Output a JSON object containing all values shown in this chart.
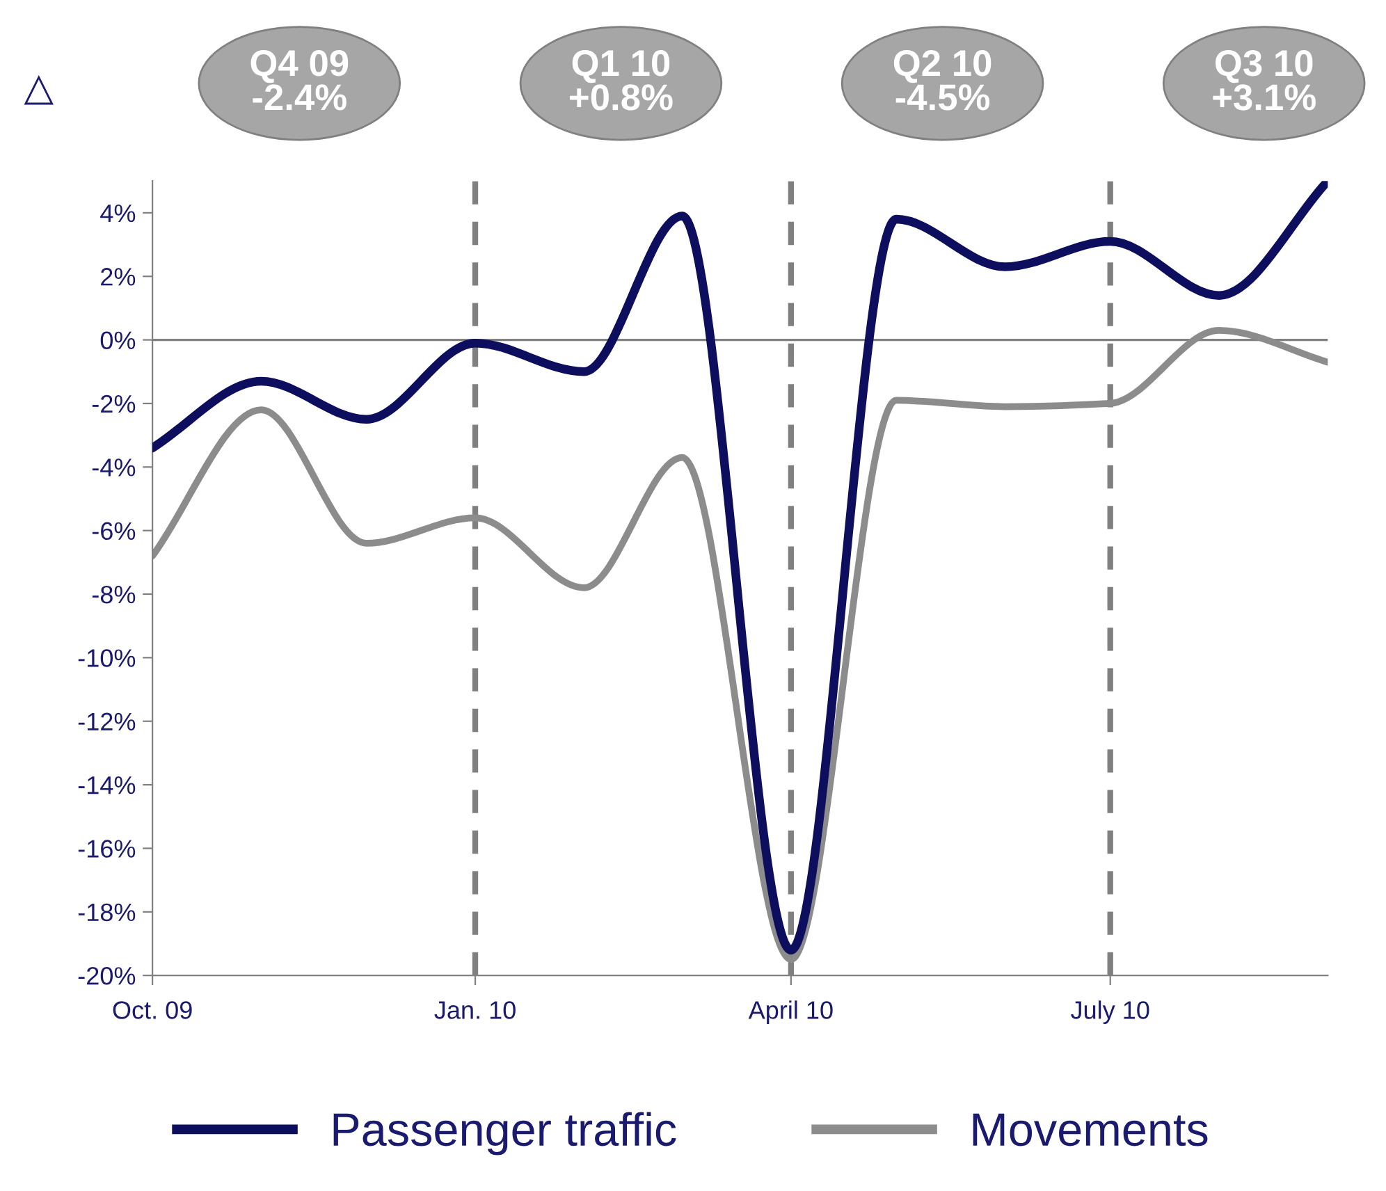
{
  "chart_data": {
    "type": "line",
    "x": [
      "2009-10",
      "2009-11",
      "2009-12",
      "2010-01",
      "2010-02",
      "2010-03",
      "2010-04",
      "2010-05",
      "2010-06",
      "2010-07",
      "2010-08",
      "2010-09"
    ],
    "series": [
      {
        "name": "Passenger traffic",
        "color": "#0d0f5e",
        "values": [
          -3.4,
          -1.3,
          -2.5,
          -0.1,
          -1.0,
          3.9,
          -19.2,
          3.8,
          2.3,
          3.1,
          1.4,
          5.0
        ]
      },
      {
        "name": "Movements",
        "color": "#8c8c8c",
        "values": [
          -6.8,
          -2.2,
          -6.4,
          -5.6,
          -7.8,
          -3.7,
          -19.5,
          -1.9,
          -2.1,
          -2.0,
          0.3,
          -0.7
        ]
      }
    ],
    "xlim": [
      "2009-10",
      "2010-09"
    ],
    "xticks": [
      {
        "value": "2009-10",
        "label": "Oct. 09"
      },
      {
        "value": "2010-01",
        "label": "Jan. 10"
      },
      {
        "value": "2010-04",
        "label": "April 10"
      },
      {
        "value": "2010-07",
        "label": "July 10"
      }
    ],
    "ylim": [
      -20,
      5
    ],
    "yticks": [
      {
        "value": -20,
        "label": "-20%"
      },
      {
        "value": -18,
        "label": "-18%"
      },
      {
        "value": -16,
        "label": "-16%"
      },
      {
        "value": -14,
        "label": "-14%"
      },
      {
        "value": -12,
        "label": "-12%"
      },
      {
        "value": -10,
        "label": "-10%"
      },
      {
        "value": -8,
        "label": "-8%"
      },
      {
        "value": -6,
        "label": "-6%"
      },
      {
        "value": -4,
        "label": "-4%"
      },
      {
        "value": -2,
        "label": "-2%"
      },
      {
        "value": 0,
        "label": "0%"
      },
      {
        "value": 2,
        "label": "2%"
      },
      {
        "value": 4,
        "label": "4%"
      }
    ],
    "ref_lines": [
      {
        "axis": "x",
        "value": "2010-01",
        "color": "#808080",
        "line_style": "dashed"
      },
      {
        "axis": "x",
        "value": "2010-04",
        "color": "#808080",
        "line_style": "dashed"
      },
      {
        "axis": "x",
        "value": "2010-07",
        "color": "#808080",
        "line_style": "dashed"
      },
      {
        "axis": "y",
        "value": 0,
        "color": "#808080",
        "line_style": "solid"
      }
    ],
    "annotations": [
      "△",
      "Q4 09\n-2.4%",
      "Q1 10\n+0.8%",
      "Q2 10\n-4.5%",
      "Q3 10\n+3.1%"
    ],
    "grid": false,
    "legend": "bottom",
    "marker": "none",
    "line_style": "solid"
  }
}
